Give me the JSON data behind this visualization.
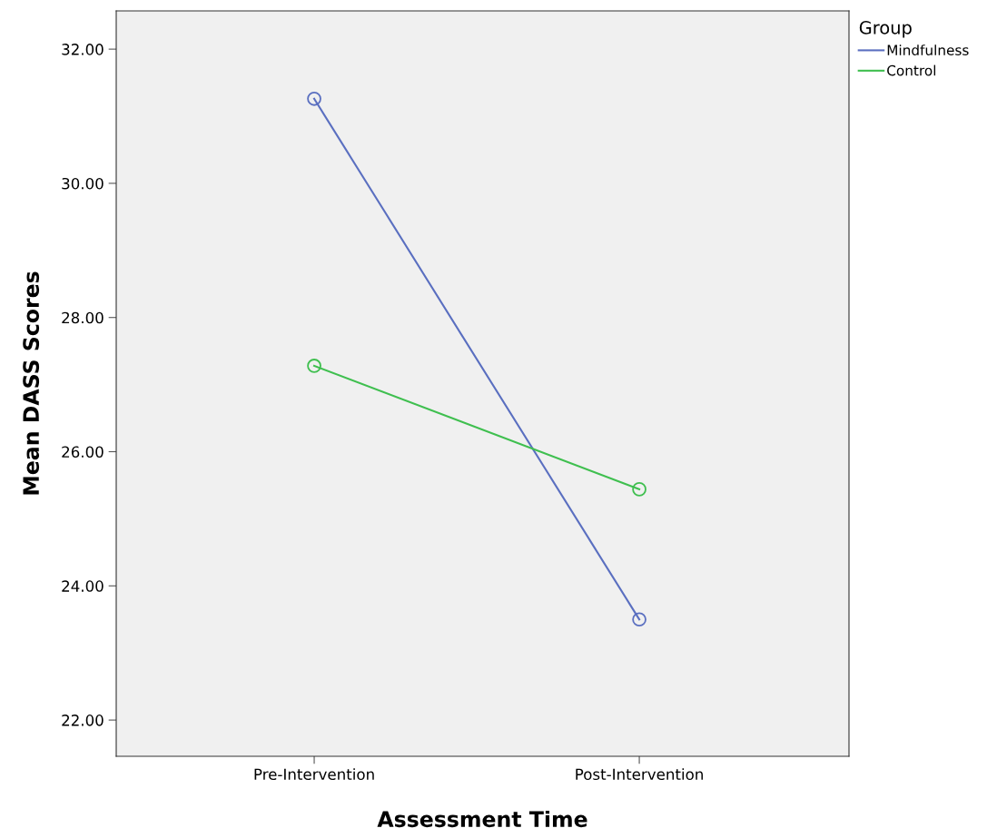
{
  "chart_data": {
    "type": "line",
    "xlabel": "Assessment Time",
    "ylabel": "Mean DASS Scores",
    "legend_title": "Group",
    "categories": [
      "Pre-Intervention",
      "Post-Intervention"
    ],
    "series": [
      {
        "name": "Mindfulness",
        "color": "#5a6fc0",
        "values": [
          31.26,
          23.5
        ]
      },
      {
        "name": "Control",
        "color": "#3fbf4f",
        "values": [
          27.28,
          25.44
        ]
      }
    ],
    "ylim": [
      21.46,
      32.57
    ],
    "yticks": [
      {
        "value": 22,
        "label": "22.00"
      },
      {
        "value": 24,
        "label": "24.00"
      },
      {
        "value": 26,
        "label": "26.00"
      },
      {
        "value": 28,
        "label": "28.00"
      },
      {
        "value": 30,
        "label": "30.00"
      },
      {
        "value": 32,
        "label": "32.00"
      }
    ],
    "grid": false,
    "legend": "top right",
    "marker": "circle",
    "line_style": "solid"
  }
}
